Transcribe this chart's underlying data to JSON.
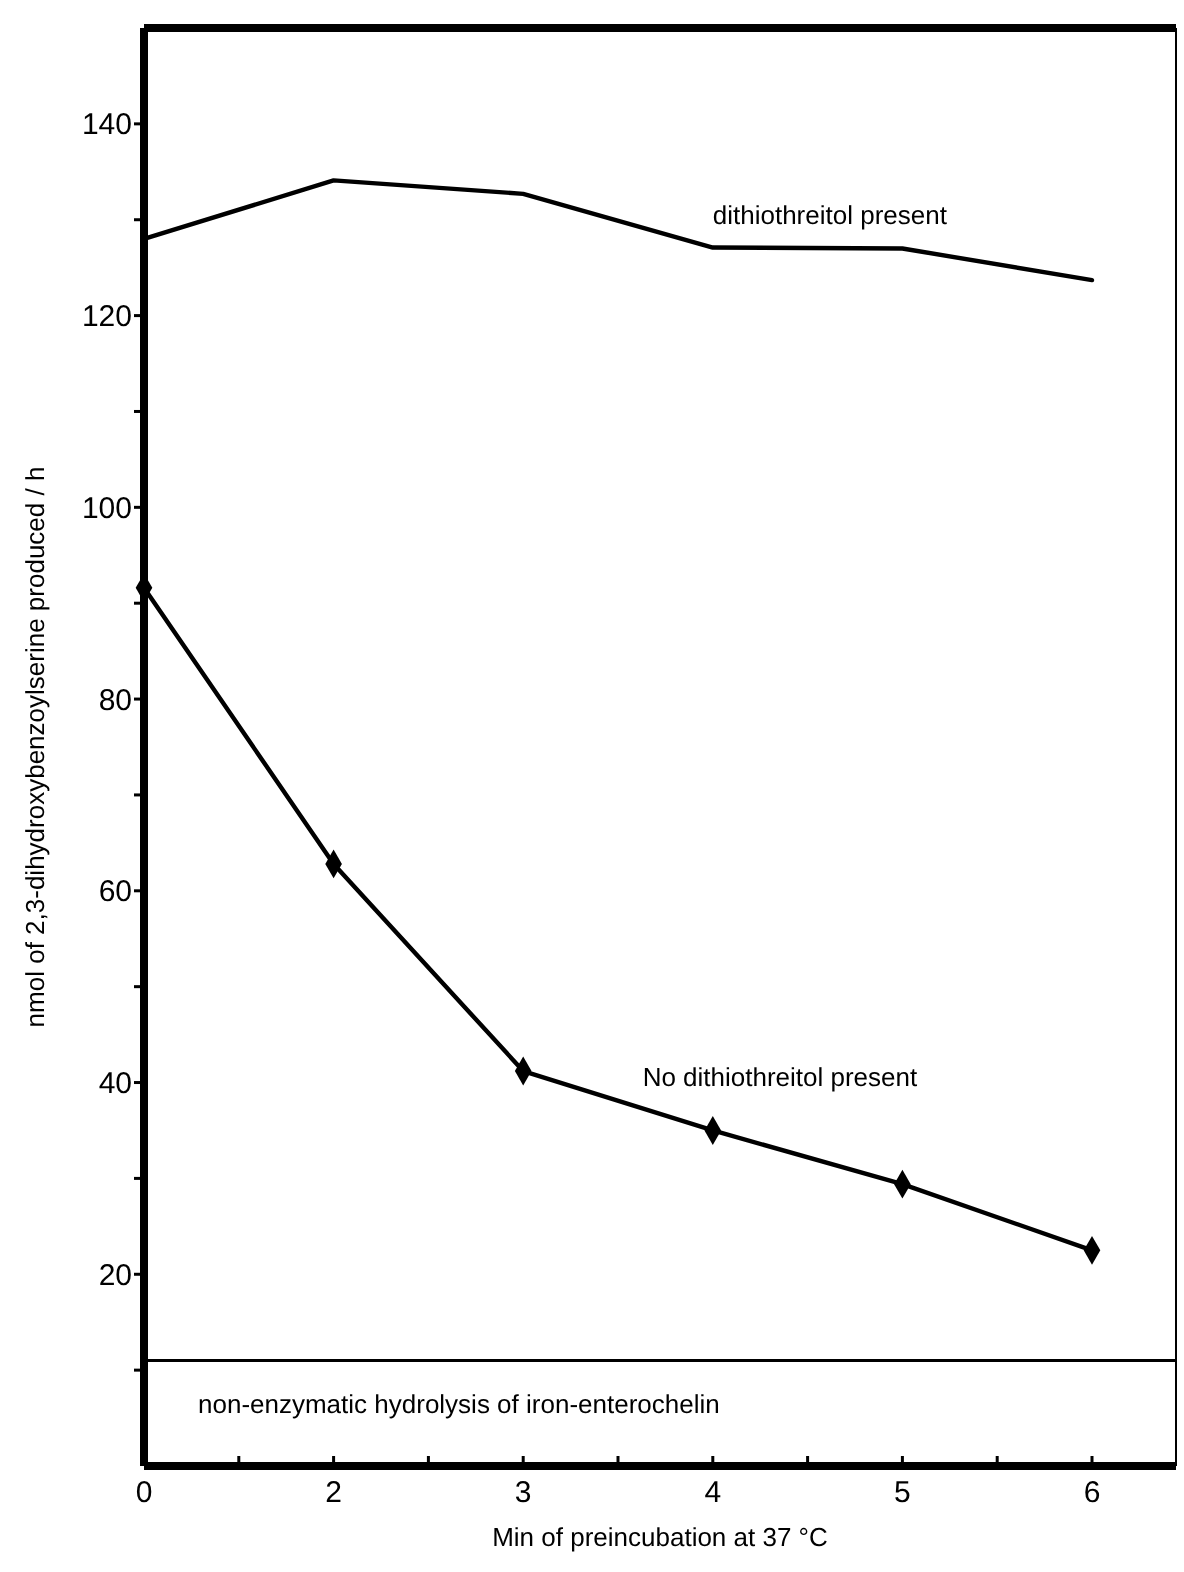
{
  "chart_data": {
    "type": "line",
    "xlabel": "Min of preincubation at 37 °C",
    "ylabel": "nmol of 2,3-dihydroxybenzoylserine produced / h",
    "categories": [
      "0",
      "2",
      "3",
      "4",
      "5",
      "6"
    ],
    "series": [
      {
        "name": "dithiothreitol present",
        "color": "#000000",
        "marker": "none",
        "values": [
          128.0,
          134.1,
          132.7,
          127.1,
          127.0,
          123.7
        ]
      },
      {
        "name": "No dithiothreitol present",
        "color": "#000000",
        "marker": "diamond",
        "values": [
          91.6,
          62.8,
          41.2,
          35.0,
          29.4,
          22.5
        ]
      }
    ],
    "ylim": [
      0,
      150
    ],
    "yticks": [
      {
        "value": 10,
        "label": null
      },
      20,
      {
        "value": 30,
        "label": null
      },
      40,
      {
        "value": 50,
        "label": null
      },
      60,
      {
        "value": 70,
        "label": null
      },
      80,
      {
        "value": 90,
        "label": null
      },
      100,
      {
        "value": 110,
        "label": null
      },
      120,
      {
        "value": 130,
        "label": null
      },
      140
    ],
    "ref_lines": [
      {
        "axis": "y",
        "value": 11,
        "label": "non-enzymatic hydrolysis of iron-enterochelin",
        "color": "#000000"
      }
    ],
    "grid": false
  }
}
